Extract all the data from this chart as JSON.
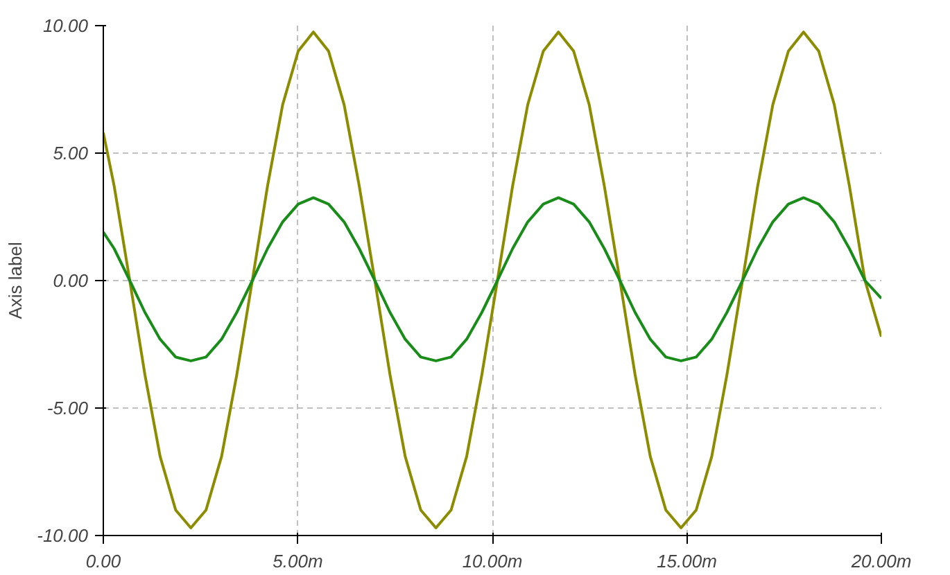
{
  "chart_data": {
    "type": "line",
    "ylabel": "Axis label",
    "x": [
      0,
      0.28,
      0.68,
      1.07,
      1.46,
      1.86,
      2.25,
      2.64,
      3.04,
      3.43,
      3.83,
      4.22,
      4.61,
      5.01,
      5.4,
      5.79,
      6.19,
      6.58,
      6.98,
      7.37,
      7.76,
      8.16,
      8.55,
      8.94,
      9.34,
      9.73,
      10.13,
      10.52,
      10.91,
      11.31,
      11.7,
      12.09,
      12.49,
      12.88,
      13.28,
      13.67,
      14.06,
      14.46,
      14.85,
      15.24,
      15.64,
      16.03,
      16.43,
      16.82,
      17.21,
      17.61,
      18.0,
      18.39,
      18.79,
      19.18,
      19.58,
      20
    ],
    "series": [
      {
        "color": "#8c8c00",
        "values": [
          5.8,
          3.7,
          0,
          -3.7,
          -6.9,
          -9.0,
          -9.7,
          -9.0,
          -6.9,
          -3.7,
          0,
          3.7,
          6.9,
          9.0,
          9.75,
          9.0,
          6.9,
          3.7,
          0,
          -3.7,
          -6.9,
          -9.0,
          -9.7,
          -9.0,
          -6.9,
          -3.7,
          0,
          3.7,
          6.9,
          9.0,
          9.75,
          9.0,
          6.9,
          3.7,
          0,
          -3.7,
          -6.9,
          -9.0,
          -9.7,
          -9.0,
          -6.9,
          -3.7,
          0,
          3.7,
          6.9,
          9.0,
          9.75,
          9.0,
          6.9,
          3.7,
          0,
          -2.2
        ]
      },
      {
        "color": "#1a8c1a",
        "values": [
          1.9,
          1.25,
          0,
          -1.25,
          -2.3,
          -3.0,
          -3.15,
          -3.0,
          -2.3,
          -1.25,
          0,
          1.25,
          2.3,
          3.0,
          3.25,
          3.0,
          2.3,
          1.25,
          0,
          -1.25,
          -2.3,
          -3.0,
          -3.15,
          -3.0,
          -2.3,
          -1.25,
          0,
          1.25,
          2.3,
          3.0,
          3.25,
          3.0,
          2.3,
          1.25,
          0,
          -1.25,
          -2.3,
          -3.0,
          -3.15,
          -3.0,
          -2.3,
          -1.25,
          0,
          1.25,
          2.3,
          3.0,
          3.25,
          3.0,
          2.3,
          1.25,
          0,
          -0.7
        ]
      }
    ],
    "xlim": [
      0,
      20
    ],
    "xticks": [
      {
        "value": 0,
        "label": "0.00"
      },
      {
        "value": 5,
        "label": "5.00m"
      },
      {
        "value": 10,
        "label": "10.00m"
      },
      {
        "value": 15,
        "label": "15.00m"
      },
      {
        "value": 20,
        "label": "20.00m"
      }
    ],
    "ylim": [
      -10,
      10
    ],
    "yticks": [
      {
        "value": -10,
        "label": "-10.00"
      },
      {
        "value": -5,
        "label": "-5.00"
      },
      {
        "value": 0,
        "label": "0.00"
      },
      {
        "value": 5,
        "label": "5.00"
      },
      {
        "value": 10,
        "label": "10.00"
      }
    ],
    "grid": true,
    "line_style": "solid"
  }
}
